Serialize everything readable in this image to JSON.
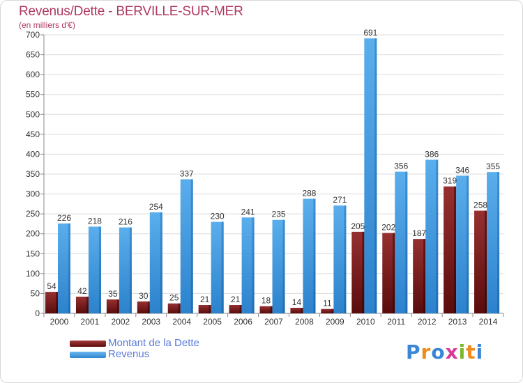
{
  "title": "Revenus/Dette - BERVILLE-SUR-MER",
  "subtitle": "(en milliers d'€)",
  "legend": {
    "debt_label": "Montant de la Dette",
    "revenue_label": "Revenus"
  },
  "logo_text": "Proxiti",
  "colors": {
    "title": "#b0385f",
    "debt_bar": "#7a1a1a",
    "revenue_bar": "#3b98e0",
    "legend_text": "#5a7bd8"
  },
  "chart_data": {
    "type": "bar",
    "categories": [
      "2000",
      "2001",
      "2002",
      "2003",
      "2004",
      "2005",
      "2006",
      "2007",
      "2008",
      "2009",
      "2010",
      "2011",
      "2012",
      "2013",
      "2014"
    ],
    "series": [
      {
        "name": "Montant de la Dette",
        "values": [
          54,
          42,
          35,
          30,
          25,
          21,
          21,
          18,
          14,
          11,
          205,
          202,
          187,
          319,
          258
        ]
      },
      {
        "name": "Revenus",
        "values": [
          226,
          218,
          216,
          254,
          337,
          230,
          241,
          235,
          288,
          271,
          691,
          356,
          386,
          346,
          355
        ]
      }
    ],
    "yticks": [
      0,
      50,
      100,
      150,
      200,
      250,
      300,
      350,
      400,
      450,
      500,
      550,
      600,
      650,
      700
    ],
    "ylim": [
      0,
      700
    ],
    "grid": true,
    "legend_position": "bottom-left"
  }
}
